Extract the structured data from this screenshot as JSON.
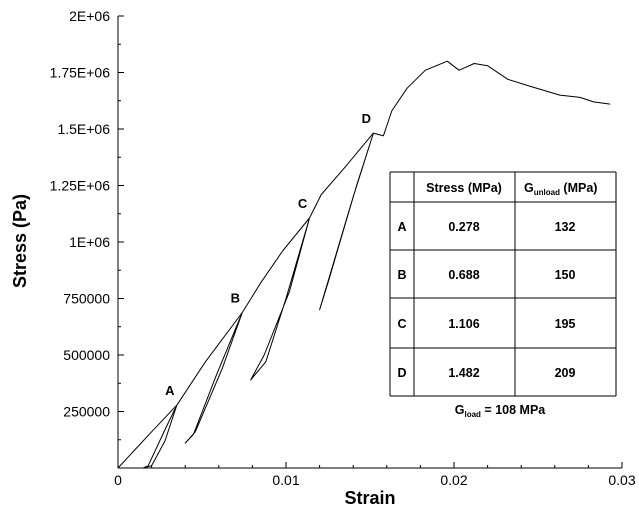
{
  "chart_data": {
    "type": "line",
    "xlabel": "Strain",
    "ylabel": "Stress (Pa)",
    "xlim": [
      0,
      0.03
    ],
    "ylim": [
      0,
      2000000
    ],
    "x_ticks": [
      0,
      0.01,
      0.02,
      0.03
    ],
    "x_tick_labels": [
      "0",
      "0.01",
      "0.02",
      "0.03"
    ],
    "y_ticks": [
      250000,
      500000,
      750000,
      1000000,
      1250000,
      1500000,
      1750000,
      2000000
    ],
    "y_tick_labels": [
      "250000",
      "500000",
      "750000",
      "1E+06",
      "1.25E+06",
      "1.5E+06",
      "1.75E+06",
      "2E+06"
    ],
    "grid": false,
    "series": [
      {
        "points": [
          [
            0,
            0
          ],
          [
            0.001,
            80000
          ],
          [
            0.002,
            160000
          ],
          [
            0.0035,
            278000
          ],
          [
            0.0052,
            470000
          ],
          [
            0.0074,
            688000
          ],
          [
            0.0085,
            820000
          ],
          [
            0.0098,
            960000
          ],
          [
            0.0114,
            1106000
          ],
          [
            0.0121,
            1210000
          ],
          [
            0.0135,
            1330000
          ],
          [
            0.0152,
            1482000
          ],
          [
            0.0158,
            1470000
          ],
          [
            0.0163,
            1580000
          ],
          [
            0.0172,
            1680000
          ],
          [
            0.0183,
            1760000
          ],
          [
            0.0196,
            1800000
          ],
          [
            0.0203,
            1760000
          ],
          [
            0.0212,
            1790000
          ],
          [
            0.022,
            1780000
          ],
          [
            0.0232,
            1720000
          ],
          [
            0.0245,
            1690000
          ],
          [
            0.0263,
            1650000
          ],
          [
            0.0275,
            1640000
          ],
          [
            0.0283,
            1620000
          ],
          [
            0.0293,
            1610000
          ]
        ]
      },
      {
        "points": [
          [
            0.0035,
            278000
          ],
          [
            0.0028,
            170000
          ],
          [
            0.0018,
            10000
          ],
          [
            0.0015,
            0
          ],
          [
            0.002,
            10000
          ],
          [
            0.0028,
            120000
          ],
          [
            0.0035,
            278000
          ]
        ]
      },
      {
        "points": [
          [
            0.0074,
            688000
          ],
          [
            0.0058,
            400000
          ],
          [
            0.0045,
            150000
          ],
          [
            0.004,
            110000
          ],
          [
            0.0046,
            160000
          ],
          [
            0.0062,
            440000
          ],
          [
            0.0074,
            688000
          ]
        ]
      },
      {
        "points": [
          [
            0.0114,
            1106000
          ],
          [
            0.01,
            750000
          ],
          [
            0.0088,
            470000
          ],
          [
            0.0079,
            390000
          ],
          [
            0.0087,
            500000
          ],
          [
            0.0102,
            780000
          ],
          [
            0.0114,
            1106000
          ]
        ]
      },
      {
        "points": [
          [
            0.0152,
            1482000
          ],
          [
            0.014,
            1200000
          ],
          [
            0.0128,
            900000
          ],
          [
            0.012,
            700000
          ],
          [
            0.0125,
            820000
          ],
          [
            0.0142,
            1250000
          ],
          [
            0.0152,
            1482000
          ]
        ]
      }
    ],
    "annotations": [
      {
        "text": "A",
        "x": 0.0035,
        "y": 278000
      },
      {
        "text": "B",
        "x": 0.0074,
        "y": 688000
      },
      {
        "text": "C",
        "x": 0.0114,
        "y": 1106000
      },
      {
        "text": "D",
        "x": 0.0152,
        "y": 1482000
      }
    ],
    "table": {
      "headers": [
        "",
        "Stress (MPa)",
        "G",
        "unload",
        " (MPa)"
      ],
      "rows": [
        [
          "A",
          "0.278",
          "132"
        ],
        [
          "B",
          "0.688",
          "150"
        ],
        [
          "C",
          "1.106",
          "195"
        ],
        [
          "D",
          "1.482",
          "209"
        ]
      ],
      "footer_prefix": "G",
      "footer_sub": "load",
      "footer_suffix": " = 108 MPa"
    }
  }
}
